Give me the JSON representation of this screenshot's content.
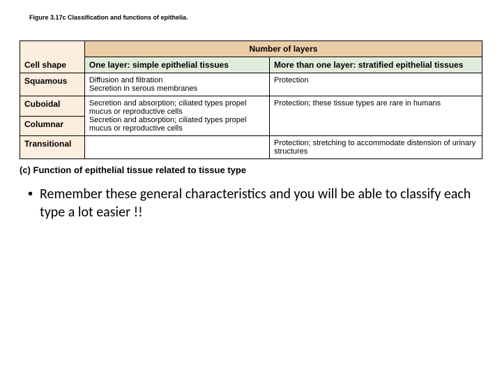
{
  "figure_title": "Figure 3.17c Classification and functions of epithelia.",
  "table": {
    "layers_header": "Number of layers",
    "shape_header": "Cell shape",
    "one_layer_header": "One layer: simple epithelial tissues",
    "more_layer_header": "More than one layer: stratified epithelial tissues",
    "rows": [
      {
        "shape": "Squamous",
        "one": "Diffusion and filtration\nSecretion in serous membranes",
        "more": "Protection"
      },
      {
        "shape": "Cuboidal",
        "one": "Secretion and absorption; ciliated types propel mucus or reproductive cells",
        "more": "Protection; these tissue types are rare in humans"
      },
      {
        "shape": "Columnar",
        "one": "Secretion and absorption; ciliated types propel mucus or reproductive cells",
        "more": ""
      },
      {
        "shape": "Transitional",
        "one": "",
        "more": "Protection; stretching to accommodate distension of urinary structures"
      }
    ],
    "column_widths": [
      "14%",
      "40%",
      "46%"
    ],
    "colors": {
      "layers_header_bg": "#ebcda8",
      "shape_col_bg": "#fceede",
      "context_cell_bg": "#e1ecdc",
      "body_cell_bg": "#ffffff",
      "border": "#000000"
    },
    "font_sizes": {
      "header": 12,
      "body": 11
    }
  },
  "caption": "(c) Function of epithelial tissue related to tissue type",
  "bullet": "Remember these general characteristics and you will be able to classify each type a lot easier !!"
}
